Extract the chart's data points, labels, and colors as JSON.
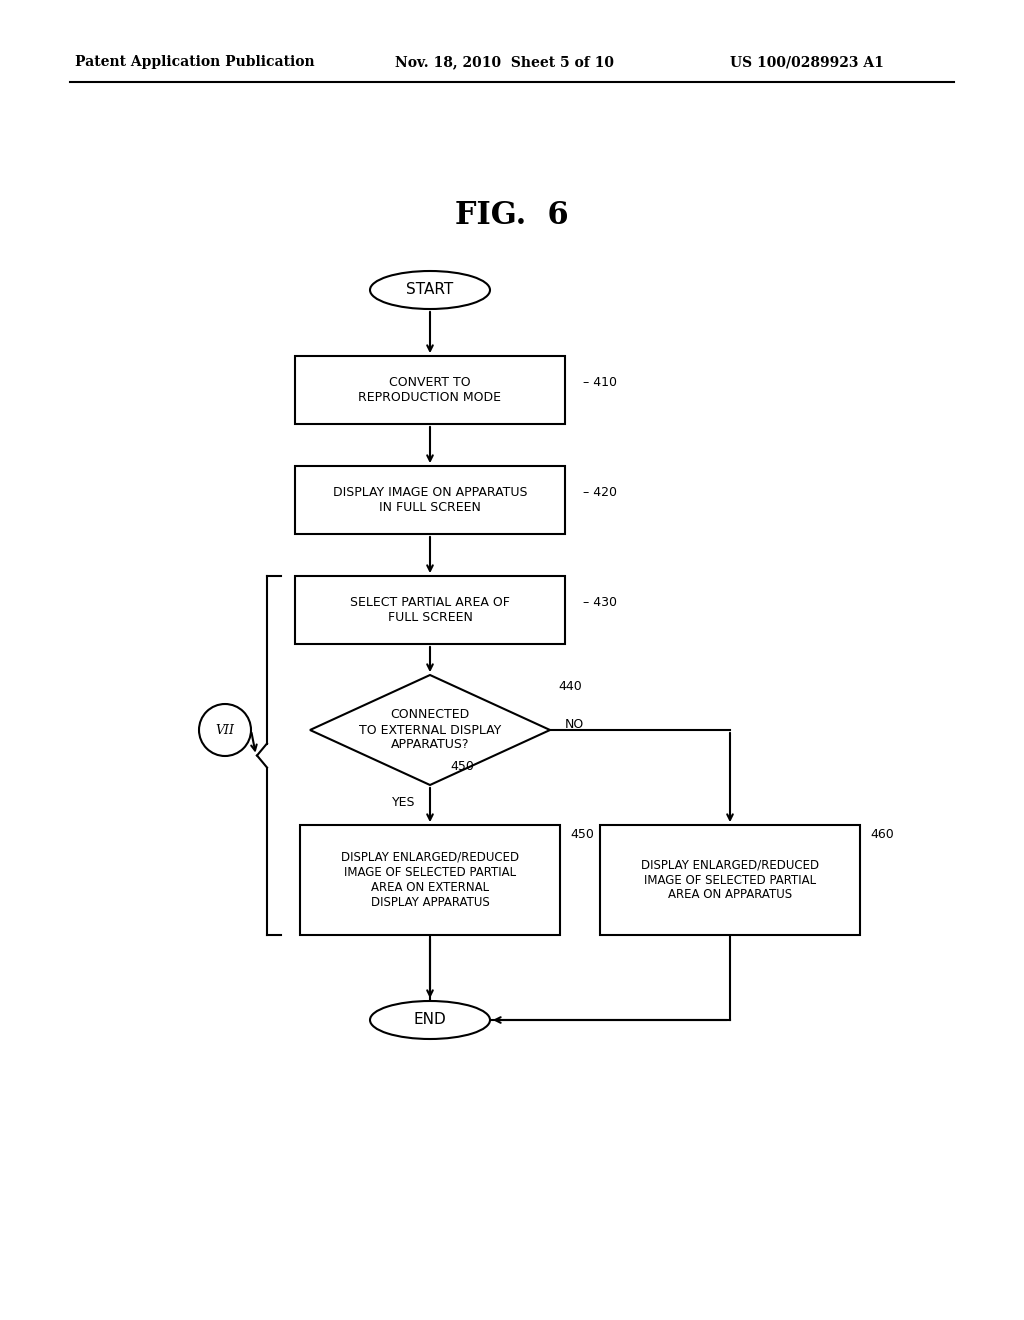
{
  "fig_title": "FIG.  6",
  "header_left": "Patent Application Publication",
  "header_mid": "Nov. 18, 2010  Sheet 5 of 10",
  "header_right": "US 100/0289923 A1",
  "bg_color": "#ffffff",
  "text_color": "#000000",
  "start_label": "START",
  "end_label": "END",
  "n410_label": "CONVERT TO\nREPRODUCTION MODE",
  "n420_label": "DISPLAY IMAGE ON APPARATUS\nIN FULL SCREEN",
  "n430_label": "SELECT PARTIAL AREA OF\nFULL SCREEN",
  "n440_label": "CONNECTED\nTO EXTERNAL DISPLAY\nAPPARATUS?",
  "n450_label": "DISPLAY ENLARGED/REDUCED\nIMAGE OF SELECTED PARTIAL\nAREA ON EXTERNAL\nDISPLAY APPARATUS",
  "n460_label": "DISPLAY ENLARGED/REDUCED\nIMAGE OF SELECTED PARTIAL\nAREA ON APPARATUS",
  "ref410": "410",
  "ref420": "420",
  "ref430": "430",
  "ref440": "440",
  "ref450": "450",
  "ref460": "460",
  "yes_label": "YES",
  "no_label": "NO",
  "vii_label": "VII"
}
